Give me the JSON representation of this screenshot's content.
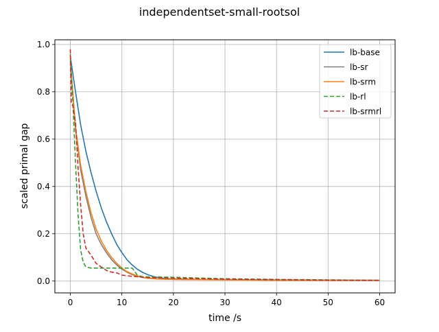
{
  "chart_data": {
    "type": "line",
    "title": "independentset-small-rootsol",
    "xlabel": "time /s",
    "ylabel": "scaled primal gap",
    "xlim": [
      -3,
      63
    ],
    "ylim": [
      -0.05,
      1.02
    ],
    "xticks": [
      0,
      10,
      20,
      30,
      40,
      50,
      60
    ],
    "yticks": [
      0.0,
      0.2,
      0.4,
      0.6,
      0.8,
      1.0
    ],
    "xtick_labels": [
      "0",
      "10",
      "20",
      "30",
      "40",
      "50",
      "60"
    ],
    "ytick_labels": [
      "0.0",
      "0.2",
      "0.4",
      "0.6",
      "0.8",
      "1.0"
    ],
    "grid": true,
    "legend_position": "top-right",
    "series": [
      {
        "name": "lb-base",
        "color": "#1f77b4",
        "dash": "solid",
        "x": [
          0,
          1,
          2,
          3,
          4,
          5,
          6,
          7,
          8,
          9,
          10,
          11,
          12,
          13,
          14,
          15,
          16,
          17,
          18,
          19,
          20,
          25,
          30,
          40,
          50,
          60
        ],
        "y": [
          0.95,
          0.8,
          0.66,
          0.55,
          0.46,
          0.38,
          0.31,
          0.25,
          0.2,
          0.155,
          0.12,
          0.09,
          0.068,
          0.05,
          0.037,
          0.027,
          0.02,
          0.015,
          0.012,
          0.01,
          0.009,
          0.007,
          0.006,
          0.005,
          0.004,
          0.003
        ]
      },
      {
        "name": "lb-sr",
        "color": "#7f7f7f",
        "dash": "solid",
        "x": [
          0,
          1,
          2,
          3,
          4,
          5,
          6,
          7,
          8,
          9,
          10,
          11,
          12,
          13,
          14,
          15,
          17,
          20,
          25,
          30,
          40,
          50,
          60
        ],
        "y": [
          0.93,
          0.64,
          0.47,
          0.36,
          0.27,
          0.2,
          0.155,
          0.12,
          0.09,
          0.068,
          0.05,
          0.037,
          0.027,
          0.02,
          0.015,
          0.012,
          0.009,
          0.007,
          0.006,
          0.005,
          0.004,
          0.003,
          0.003
        ]
      },
      {
        "name": "lb-srm",
        "color": "#ff7f0e",
        "dash": "solid",
        "x": [
          0,
          1,
          2,
          3,
          4,
          5,
          6,
          7,
          8,
          9,
          10,
          11,
          12,
          13,
          14,
          15,
          17,
          20,
          25,
          30,
          40,
          50,
          60
        ],
        "y": [
          0.94,
          0.65,
          0.49,
          0.38,
          0.29,
          0.22,
          0.17,
          0.13,
          0.1,
          0.075,
          0.055,
          0.04,
          0.03,
          0.022,
          0.016,
          0.012,
          0.009,
          0.007,
          0.006,
          0.005,
          0.004,
          0.003,
          0.003
        ]
      },
      {
        "name": "lb-rl",
        "color": "#2ca02c",
        "dash": "dashed",
        "x": [
          0,
          0.5,
          1,
          1.5,
          2,
          2.5,
          3,
          4,
          5,
          6,
          8,
          10,
          12,
          13,
          14,
          20,
          25,
          30,
          40,
          50,
          60
        ],
        "y": [
          0.96,
          0.75,
          0.5,
          0.28,
          0.13,
          0.08,
          0.06,
          0.055,
          0.055,
          0.055,
          0.055,
          0.055,
          0.055,
          0.025,
          0.018,
          0.016,
          0.013,
          0.01,
          0.007,
          0.005,
          0.003
        ]
      },
      {
        "name": "lb-srmrl",
        "color": "#d62728",
        "dash": "dashed",
        "x": [
          0,
          0.2,
          0.5,
          1,
          1.5,
          2,
          2.5,
          3,
          4,
          5,
          6,
          7,
          8,
          9,
          10,
          12,
          15,
          20,
          30,
          40,
          50,
          60
        ],
        "y": [
          0.98,
          0.75,
          0.74,
          0.67,
          0.48,
          0.32,
          0.2,
          0.14,
          0.11,
          0.075,
          0.06,
          0.045,
          0.038,
          0.035,
          0.025,
          0.02,
          0.015,
          0.012,
          0.008,
          0.006,
          0.004,
          0.003
        ]
      }
    ]
  }
}
